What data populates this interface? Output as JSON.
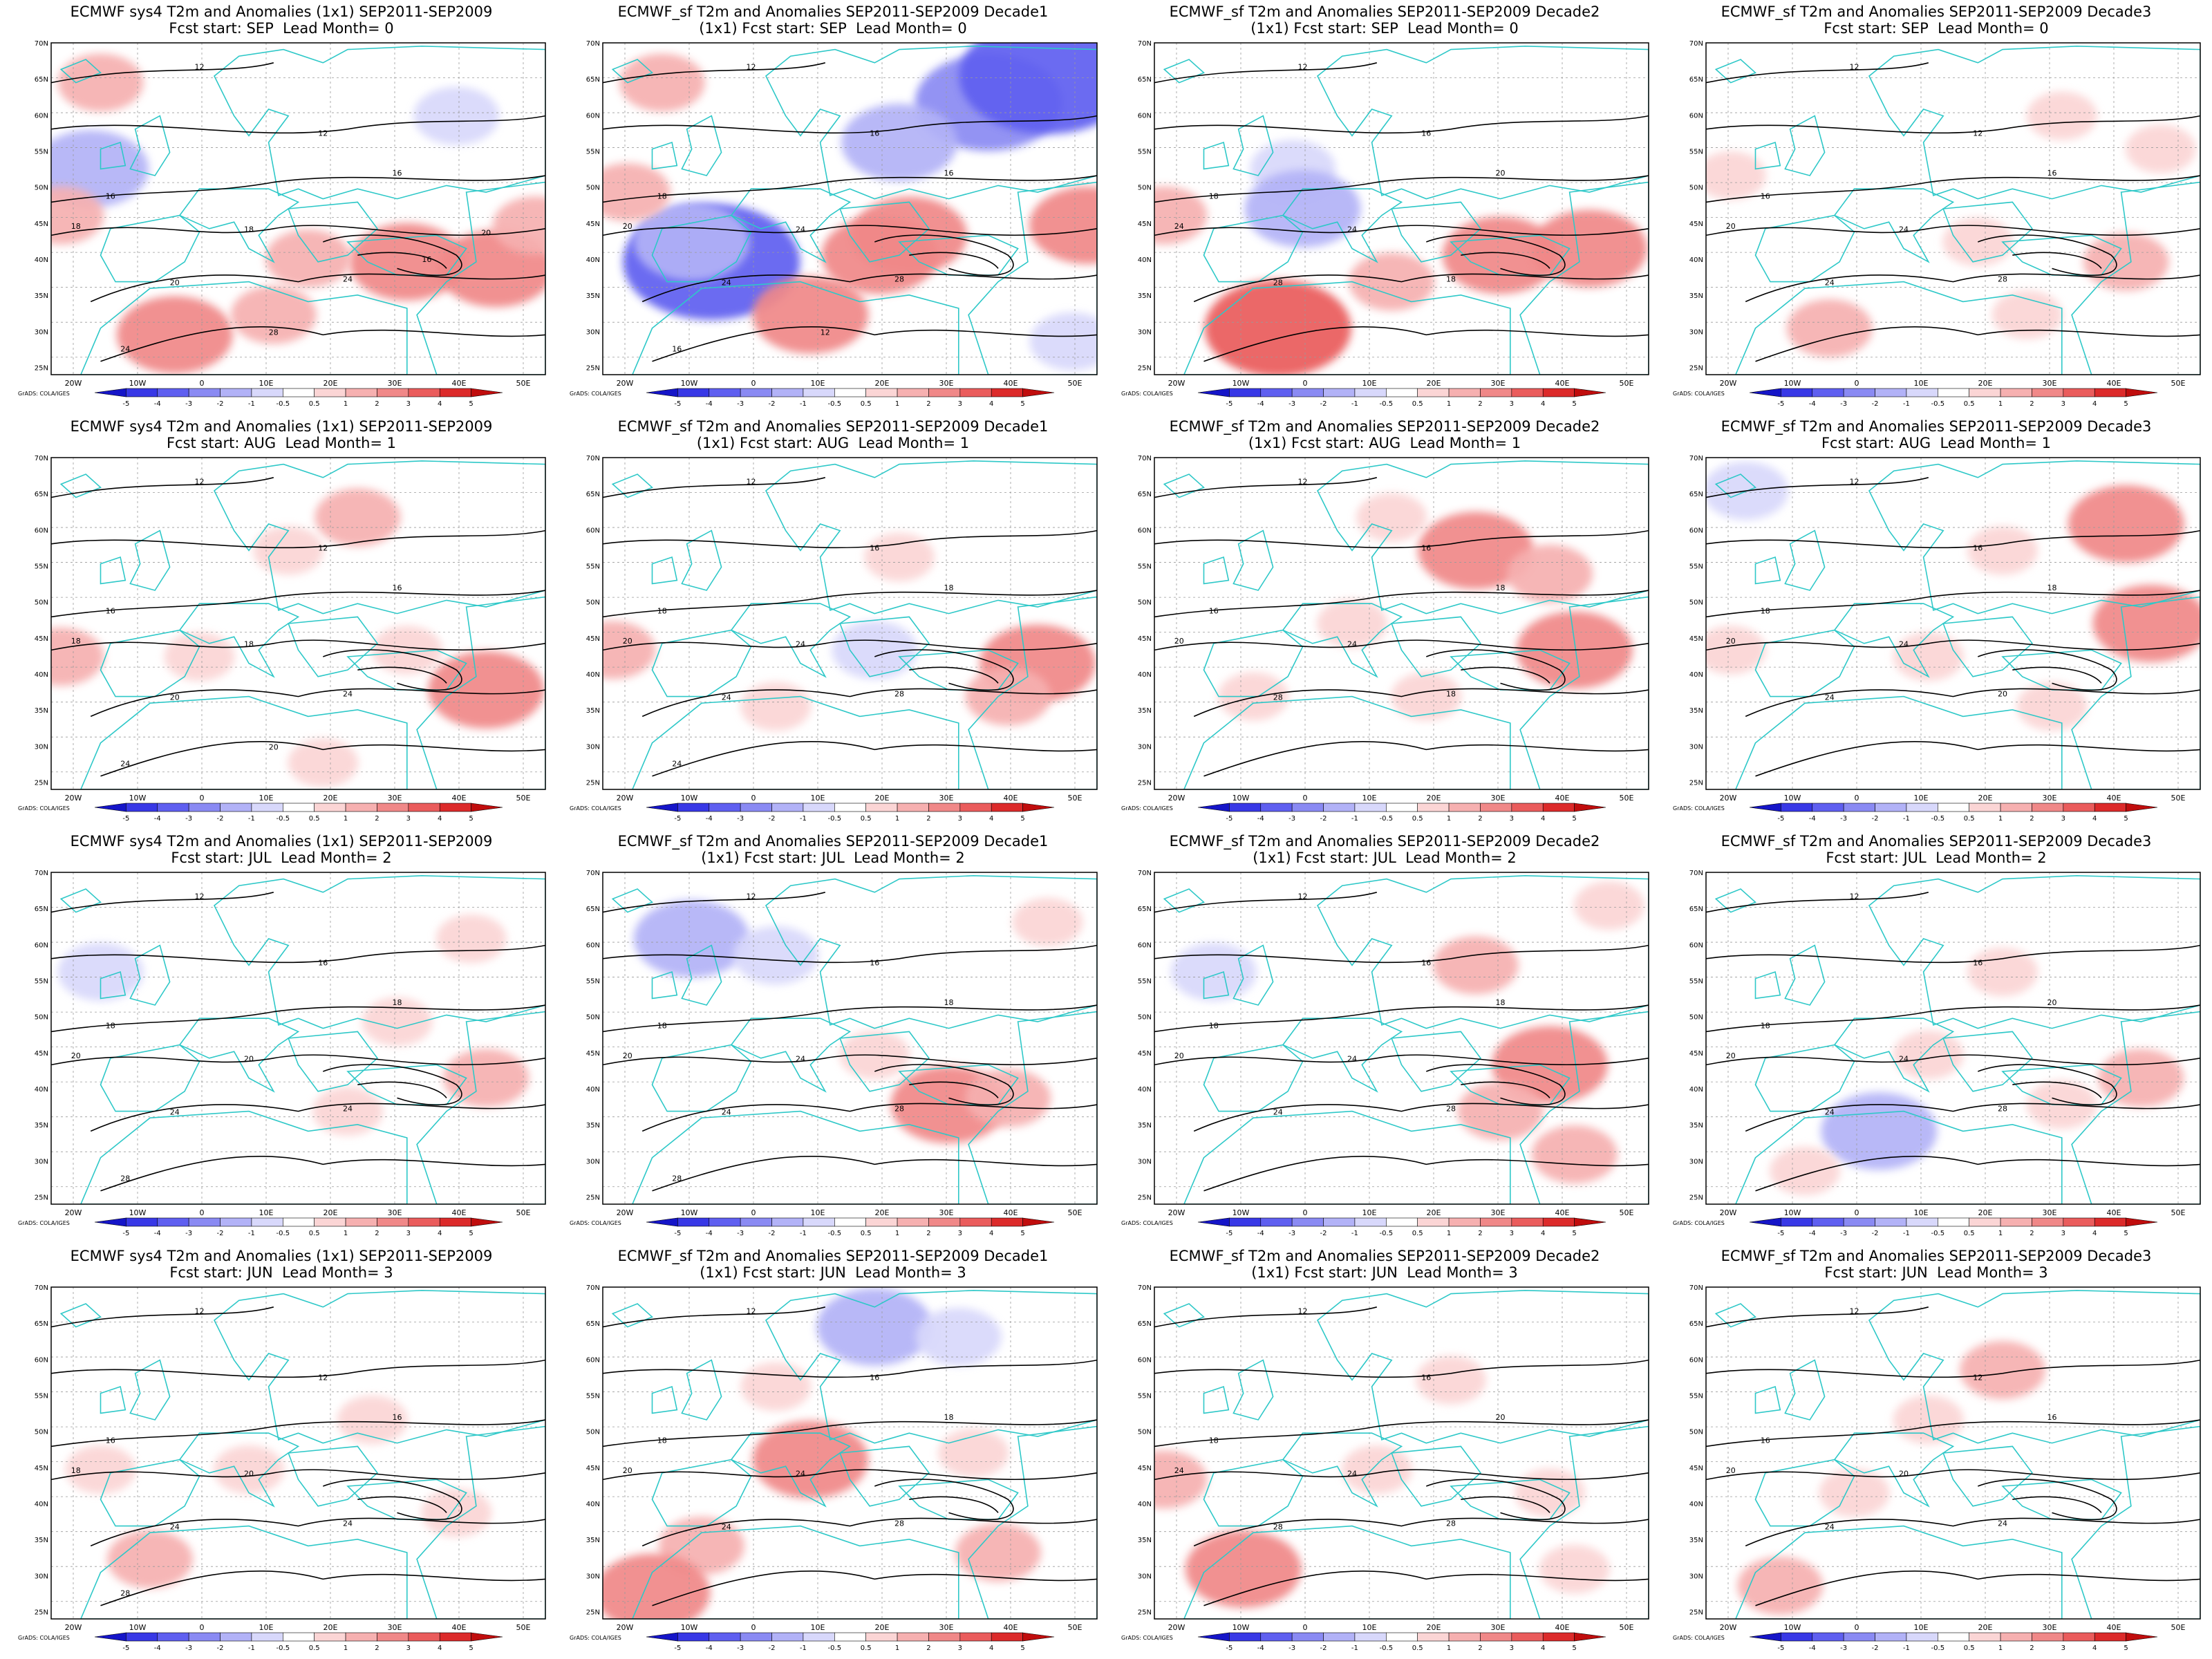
{
  "figure": {
    "credit": "GrADS: COLA/IGES",
    "colorbar_levels": [
      "-5",
      "-4",
      "-3",
      "-2",
      "-1",
      "-0.5",
      "0.5",
      "1",
      "2",
      "3",
      "4",
      "5"
    ],
    "colorbar_colors": [
      "#1515c8",
      "#3838e6",
      "#5f5ff0",
      "#8a8af3",
      "#b2b2f7",
      "#d8d8fb",
      "#ffffff",
      "#fbd5d5",
      "#f6b0b0",
      "#f08888",
      "#ea5c5c",
      "#dc2a2a",
      "#c00d0d"
    ],
    "lat_labels": [
      "70N",
      "65N",
      "60N",
      "55N",
      "50N",
      "45N",
      "40N",
      "35N",
      "30N",
      "25N"
    ],
    "lon_labels": [
      "20W",
      "10W",
      "0",
      "10E",
      "20E",
      "30E",
      "40E",
      "50E"
    ],
    "land_outline_color": "#2ec8c8",
    "contour_color": "#000000"
  },
  "panels": [
    {
      "title1": "ECMWF sys4 T2m and Anomalies (1x1) SEP2011-SEP2009",
      "title2": "Fcst start: SEP  Lead Month= 0",
      "contour_labels": [
        "12",
        "12",
        "16",
        "16",
        "18",
        "18",
        "20",
        "24",
        "24",
        "28",
        "20",
        "16"
      ],
      "anomalies": [
        [
          0.08,
          0.38,
          -2
        ],
        [
          0.82,
          0.22,
          -1
        ],
        [
          0.4,
          0.44,
          -0.5
        ],
        [
          0.72,
          0.66,
          2
        ],
        [
          0.9,
          0.68,
          2
        ],
        [
          0.52,
          0.65,
          1
        ],
        [
          0.25,
          0.88,
          2
        ],
        [
          0.45,
          0.82,
          1
        ],
        [
          0.02,
          0.52,
          1
        ],
        [
          0.1,
          0.12,
          1
        ],
        [
          0.6,
          0.35,
          -0.5
        ],
        [
          0.98,
          0.55,
          1
        ]
      ]
    },
    {
      "title1": "ECMWF_sf T2m and Anomalies SEP2011-SEP2009 Decade1",
      "title2": "(1x1) Fcst start: SEP  Lead Month= 0",
      "contour_labels": [
        "12",
        "16",
        "18",
        "16",
        "20",
        "24",
        "24",
        "28",
        "16",
        "12"
      ],
      "anomalies": [
        [
          0.78,
          0.18,
          -3
        ],
        [
          0.9,
          0.1,
          -4
        ],
        [
          0.6,
          0.3,
          -2
        ],
        [
          0.22,
          0.66,
          -4
        ],
        [
          0.18,
          0.6,
          -2
        ],
        [
          0.62,
          0.58,
          2
        ],
        [
          0.42,
          0.82,
          2
        ],
        [
          0.56,
          0.64,
          2
        ],
        [
          0.98,
          0.55,
          2
        ],
        [
          0.05,
          0.45,
          1
        ],
        [
          0.12,
          0.12,
          1
        ],
        [
          0.35,
          0.26,
          -0.5
        ],
        [
          0.95,
          0.9,
          -1
        ]
      ]
    },
    {
      "title1": "ECMWF_sf T2m and Anomalies SEP2011-SEP2009 Decade2",
      "title2": "(1x1) Fcst start: SEP  Lead Month= 0",
      "contour_labels": [
        "12",
        "16",
        "18",
        "20",
        "24",
        "24",
        "28",
        "18"
      ],
      "anomalies": [
        [
          0.28,
          0.38,
          -1
        ],
        [
          0.3,
          0.5,
          -2
        ],
        [
          0.12,
          0.64,
          -0.5
        ],
        [
          0.7,
          0.64,
          2
        ],
        [
          0.88,
          0.62,
          2
        ],
        [
          0.25,
          0.86,
          3
        ],
        [
          0.48,
          0.72,
          1
        ],
        [
          0.02,
          0.52,
          1
        ],
        [
          0.55,
          0.2,
          -0.5
        ],
        [
          0.85,
          0.3,
          -0.5
        ]
      ]
    },
    {
      "title1": "ECMWF_sf T2m and Anomalies SEP2011-SEP2009 Decade3",
      "title2": "Fcst start: SEP  Lead Month= 0",
      "contour_labels": [
        "12",
        "12",
        "16",
        "16",
        "20",
        "24",
        "24",
        "28"
      ],
      "anomalies": [
        [
          0.72,
          0.22,
          0.5
        ],
        [
          0.35,
          0.54,
          -0.5
        ],
        [
          0.85,
          0.66,
          1
        ],
        [
          0.55,
          0.6,
          0.5
        ],
        [
          0.25,
          0.86,
          1
        ],
        [
          0.05,
          0.4,
          0.5
        ],
        [
          0.65,
          0.82,
          0.5
        ],
        [
          0.92,
          0.32,
          0.5
        ]
      ]
    },
    {
      "title1": "ECMWF sys4 T2m and Anomalies (1x1) SEP2011-SEP2009",
      "title2": "Fcst start: AUG  Lead Month= 1",
      "contour_labels": [
        "12",
        "12",
        "16",
        "16",
        "18",
        "18",
        "20",
        "24",
        "24",
        "20"
      ],
      "anomalies": [
        [
          0.62,
          0.18,
          1
        ],
        [
          0.48,
          0.28,
          0.5
        ],
        [
          0.88,
          0.7,
          2
        ],
        [
          0.72,
          0.58,
          0.5
        ],
        [
          0.02,
          0.6,
          1
        ],
        [
          0.3,
          0.6,
          0.5
        ],
        [
          0.05,
          0.18,
          -0.5
        ],
        [
          0.55,
          0.92,
          0.5
        ]
      ]
    },
    {
      "title1": "ECMWF_sf T2m and Anomalies SEP2011-SEP2009 Decade1",
      "title2": "(1x1) Fcst start: AUG  Lead Month= 1",
      "contour_labels": [
        "12",
        "16",
        "18",
        "18",
        "20",
        "24",
        "24",
        "28",
        "24"
      ],
      "anomalies": [
        [
          0.55,
          0.58,
          -1
        ],
        [
          0.4,
          0.42,
          -0.5
        ],
        [
          0.88,
          0.62,
          2
        ],
        [
          0.82,
          0.72,
          1
        ],
        [
          0.15,
          0.82,
          -0.5
        ],
        [
          0.35,
          0.75,
          0.5
        ],
        [
          0.6,
          0.3,
          0.5
        ],
        [
          0.02,
          0.58,
          1
        ]
      ]
    },
    {
      "title1": "ECMWF_sf T2m and Anomalies SEP2011-SEP2009 Decade2",
      "title2": "(1x1) Fcst start: AUG  Lead Month= 1",
      "contour_labels": [
        "12",
        "16",
        "16",
        "18",
        "20",
        "24",
        "28",
        "18"
      ],
      "anomalies": [
        [
          0.65,
          0.28,
          2
        ],
        [
          0.8,
          0.35,
          1
        ],
        [
          0.4,
          0.5,
          0.5
        ],
        [
          0.85,
          0.58,
          2
        ],
        [
          0.55,
          0.72,
          0.5
        ],
        [
          0.2,
          0.72,
          0.5
        ],
        [
          0.02,
          0.18,
          -0.5
        ],
        [
          0.48,
          0.18,
          0.5
        ]
      ]
    },
    {
      "title1": "ECMWF_sf T2m and Anomalies SEP2011-SEP2009 Decade3",
      "title2": "Fcst start: AUG  Lead Month= 1",
      "contour_labels": [
        "12",
        "16",
        "18",
        "18",
        "20",
        "24",
        "24",
        "20"
      ],
      "anomalies": [
        [
          0.85,
          0.2,
          2
        ],
        [
          0.9,
          0.5,
          2
        ],
        [
          0.6,
          0.28,
          0.5
        ],
        [
          0.08,
          0.1,
          -1
        ],
        [
          0.05,
          0.58,
          0.5
        ],
        [
          0.3,
          0.85,
          -0.5
        ],
        [
          0.45,
          0.6,
          0.5
        ],
        [
          0.7,
          0.75,
          0.5
        ]
      ]
    },
    {
      "title1": "ECMWF sys4 T2m and Anomalies (1x1) SEP2011-SEP2009",
      "title2": "Fcst start: JUL  Lead Month= 2",
      "contour_labels": [
        "12",
        "16",
        "18",
        "18",
        "20",
        "20",
        "24",
        "24",
        "28"
      ],
      "anomalies": [
        [
          0.1,
          0.3,
          -1
        ],
        [
          0.35,
          0.12,
          -0.5
        ],
        [
          0.88,
          0.62,
          1
        ],
        [
          0.7,
          0.45,
          0.5
        ],
        [
          0.42,
          0.82,
          -0.5
        ],
        [
          0.85,
          0.2,
          0.5
        ],
        [
          0.6,
          0.72,
          0.5
        ]
      ]
    },
    {
      "title1": "ECMWF_sf T2m and Anomalies SEP2011-SEP2009 Decade1",
      "title2": "(1x1) Fcst start: JUL  Lead Month= 2",
      "contour_labels": [
        "12",
        "16",
        "18",
        "18",
        "20",
        "24",
        "24",
        "28",
        "28"
      ],
      "anomalies": [
        [
          0.18,
          0.2,
          -2
        ],
        [
          0.35,
          0.25,
          -1
        ],
        [
          0.7,
          0.7,
          2
        ],
        [
          0.82,
          0.68,
          1
        ],
        [
          0.25,
          0.78,
          -0.5
        ],
        [
          0.55,
          0.55,
          0.5
        ],
        [
          0.9,
          0.15,
          0.5
        ],
        [
          0.48,
          0.85,
          -0.5
        ]
      ]
    },
    {
      "title1": "ECMWF_sf T2m and Anomalies SEP2011-SEP2009 Decade2",
      "title2": "(1x1) Fcst start: JUL  Lead Month= 2",
      "contour_labels": [
        "12",
        "16",
        "18",
        "18",
        "20",
        "24",
        "24",
        "28"
      ],
      "anomalies": [
        [
          0.12,
          0.3,
          -1
        ],
        [
          0.8,
          0.58,
          2
        ],
        [
          0.7,
          0.72,
          1
        ],
        [
          0.65,
          0.28,
          1
        ],
        [
          0.85,
          0.85,
          1
        ],
        [
          0.3,
          0.8,
          -0.5
        ],
        [
          0.92,
          0.1,
          0.5
        ]
      ]
    },
    {
      "title1": "ECMWF_sf T2m and Anomalies SEP2011-SEP2009 Decade3",
      "title2": "Fcst start: JUL  Lead Month= 2",
      "contour_labels": [
        "12",
        "16",
        "18",
        "20",
        "20",
        "24",
        "24",
        "28"
      ],
      "anomalies": [
        [
          0.35,
          0.78,
          -2
        ],
        [
          0.12,
          0.18,
          -0.5
        ],
        [
          0.6,
          0.3,
          0.5
        ],
        [
          0.88,
          0.62,
          1
        ],
        [
          0.72,
          0.7,
          0.5
        ],
        [
          0.2,
          0.9,
          0.5
        ],
        [
          0.45,
          0.55,
          0.5
        ]
      ]
    },
    {
      "title1": "ECMWF sys4 T2m and Anomalies (1x1) SEP2011-SEP2009",
      "title2": "Fcst start: JUN  Lead Month= 3",
      "contour_labels": [
        "12",
        "12",
        "16",
        "16",
        "18",
        "20",
        "24",
        "24",
        "28"
      ],
      "anomalies": [
        [
          0.2,
          0.82,
          1
        ],
        [
          0.4,
          0.55,
          0.5
        ],
        [
          0.65,
          0.4,
          0.5
        ],
        [
          0.82,
          0.68,
          0.5
        ],
        [
          0.55,
          0.2,
          -0.5
        ],
        [
          0.75,
          0.88,
          -0.5
        ],
        [
          0.1,
          0.55,
          0.5
        ]
      ]
    },
    {
      "title1": "ECMWF_sf T2m and Anomalies SEP2011-SEP2009 Decade1",
      "title2": "(1x1) Fcst start: JUN  Lead Month= 3",
      "contour_labels": [
        "12",
        "16",
        "18",
        "18",
        "20",
        "24",
        "24",
        "28"
      ],
      "anomalies": [
        [
          0.55,
          0.12,
          -2
        ],
        [
          0.72,
          0.15,
          -1
        ],
        [
          0.42,
          0.52,
          2
        ],
        [
          0.2,
          0.78,
          1
        ],
        [
          0.1,
          0.92,
          2
        ],
        [
          0.8,
          0.8,
          1
        ],
        [
          0.75,
          0.5,
          0.5
        ],
        [
          0.35,
          0.3,
          0.5
        ]
      ]
    },
    {
      "title1": "ECMWF_sf T2m and Anomalies SEP2011-SEP2009 Decade2",
      "title2": "(1x1) Fcst start: JUN  Lead Month= 3",
      "contour_labels": [
        "12",
        "16",
        "18",
        "20",
        "24",
        "24",
        "28",
        "28"
      ],
      "anomalies": [
        [
          0.18,
          0.85,
          2
        ],
        [
          0.45,
          0.55,
          0.5
        ],
        [
          0.6,
          0.28,
          0.5
        ],
        [
          0.8,
          0.62,
          0.5
        ],
        [
          0.3,
          0.15,
          -0.5
        ],
        [
          0.02,
          0.58,
          1
        ],
        [
          0.85,
          0.85,
          0.5
        ]
      ]
    },
    {
      "title1": "ECMWF_sf T2m and Anomalies SEP2011-SEP2009 Decade3",
      "title2": "Fcst start: JUN  Lead Month= 3",
      "contour_labels": [
        "12",
        "12",
        "16",
        "16",
        "20",
        "20",
        "24",
        "24"
      ],
      "anomalies": [
        [
          0.6,
          0.25,
          1
        ],
        [
          0.45,
          0.4,
          0.5
        ],
        [
          0.9,
          0.38,
          -0.5
        ],
        [
          0.75,
          0.62,
          -0.5
        ],
        [
          0.15,
          0.9,
          1
        ],
        [
          0.3,
          0.62,
          0.5
        ],
        [
          0.55,
          0.88,
          -0.5
        ]
      ]
    }
  ]
}
